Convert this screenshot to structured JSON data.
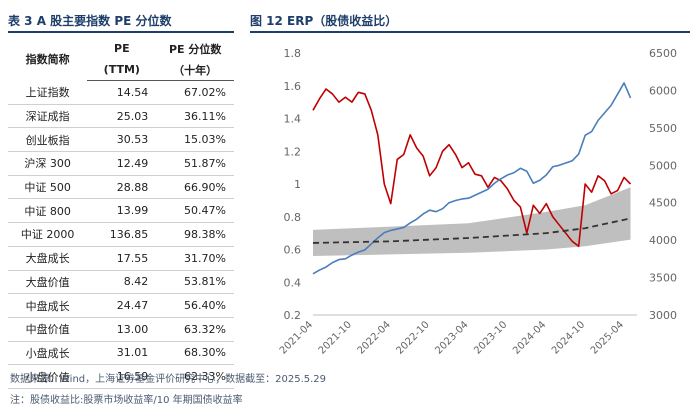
{
  "table": {
    "title": "表 3 A 股主要指数 PE 分位数",
    "headers": [
      {
        "line1": "指数简称",
        "line2": ""
      },
      {
        "line1": "PE",
        "line2": "(TTM)"
      },
      {
        "line1": "PE 分位数",
        "line2": "（十年）"
      }
    ],
    "rows": [
      {
        "name": "上证指数",
        "pe": "14.54",
        "pct": "67.02%"
      },
      {
        "name": "深证成指",
        "pe": "25.03",
        "pct": "36.11%"
      },
      {
        "name": "创业板指",
        "pe": "30.53",
        "pct": "15.03%"
      },
      {
        "name": "沪深 300",
        "pe": "12.49",
        "pct": "51.87%"
      },
      {
        "name": "中证 500",
        "pe": "28.88",
        "pct": "66.90%"
      },
      {
        "name": "中证 800",
        "pe": "13.99",
        "pct": "50.47%"
      },
      {
        "name": "中证 2000",
        "pe": "136.85",
        "pct": "98.38%"
      },
      {
        "name": "大盘成长",
        "pe": "17.55",
        "pct": "31.70%"
      },
      {
        "name": "大盘价值",
        "pe": "8.42",
        "pct": "53.81%"
      },
      {
        "name": "中盘成长",
        "pe": "24.47",
        "pct": "56.40%"
      },
      {
        "name": "中盘价值",
        "pe": "13.00",
        "pct": "63.32%"
      },
      {
        "name": "小盘成长",
        "pe": "31.01",
        "pct": "68.30%"
      },
      {
        "name": "小盘价值",
        "pe": "16.59",
        "pct": "62.33%"
      }
    ]
  },
  "chart_title": "图 12 ERP（股债收益比）",
  "footer": {
    "source": "数据来源：Wind，上海证券基金评价研究中心；数据截至：2025.5.29",
    "note": "注：股债收益比:股票市场收益率/10 年期国债收益率"
  },
  "colors": {
    "title": "#1f3f6b",
    "red": "#c00000",
    "blue": "#4a7ebb",
    "band": "#bfbfbf",
    "dash": "#333333"
  },
  "chart_data": {
    "type": "line",
    "title": "",
    "x_ticks": [
      "2021-04",
      "2021-10",
      "2022-04",
      "2022-10",
      "2023-04",
      "2023-10",
      "2024-04",
      "2024-10",
      "2025-04"
    ],
    "x_range": [
      "2021-04",
      "2025-06"
    ],
    "y_left": {
      "range": [
        0.2,
        1.8
      ],
      "ticks": [
        "0.2",
        "0.4",
        "0.6",
        "0.8",
        "1",
        "1.2",
        "1.4",
        "1.6",
        "1.8"
      ]
    },
    "y_right": {
      "range": [
        3000,
        6500
      ],
      "ticks": [
        "3000",
        "3500",
        "4000",
        "4500",
        "5000",
        "5500",
        "6000",
        "6500"
      ]
    },
    "grid": false,
    "legend": "none",
    "series": [
      {
        "axis": "left",
        "color": "#c00000",
        "style": "solid",
        "x": [
          "2021-04",
          "2021-05",
          "2021-06",
          "2021-07",
          "2021-08",
          "2021-09",
          "2021-10",
          "2021-11",
          "2021-12",
          "2022-01",
          "2022-02",
          "2022-03",
          "2022-04",
          "2022-05",
          "2022-06",
          "2022-07",
          "2022-08",
          "2022-09",
          "2022-10",
          "2022-11",
          "2022-12",
          "2023-01",
          "2023-02",
          "2023-03",
          "2023-04",
          "2023-05",
          "2023-06",
          "2023-07",
          "2023-08",
          "2023-09",
          "2023-10",
          "2023-11",
          "2023-12",
          "2024-01",
          "2024-02",
          "2024-03",
          "2024-04",
          "2024-05",
          "2024-06",
          "2024-07",
          "2024-08",
          "2024-09",
          "2024-10",
          "2024-11",
          "2024-12",
          "2025-01",
          "2025-02",
          "2025-03",
          "2025-04",
          "2025-05"
        ],
        "values": [
          1.45,
          1.52,
          1.58,
          1.55,
          1.5,
          1.53,
          1.5,
          1.56,
          1.55,
          1.45,
          1.3,
          1.0,
          0.88,
          1.15,
          1.18,
          1.3,
          1.22,
          1.17,
          1.05,
          1.1,
          1.2,
          1.24,
          1.18,
          1.1,
          1.13,
          1.06,
          1.05,
          0.98,
          1.04,
          1.02,
          0.97,
          0.9,
          0.86,
          0.7,
          0.87,
          0.82,
          0.88,
          0.8,
          0.75,
          0.7,
          0.65,
          0.62,
          1.0,
          0.95,
          1.05,
          1.02,
          0.94,
          0.96,
          1.04,
          1.0
        ]
      },
      {
        "axis": "right",
        "color": "#4a7ebb",
        "style": "solid",
        "x": [
          "2021-04",
          "2021-05",
          "2021-06",
          "2021-07",
          "2021-08",
          "2021-09",
          "2021-10",
          "2021-11",
          "2021-12",
          "2022-01",
          "2022-02",
          "2022-03",
          "2022-04",
          "2022-05",
          "2022-06",
          "2022-07",
          "2022-08",
          "2022-09",
          "2022-10",
          "2022-11",
          "2022-12",
          "2023-01",
          "2023-02",
          "2023-03",
          "2023-04",
          "2023-05",
          "2023-06",
          "2023-07",
          "2023-08",
          "2023-09",
          "2023-10",
          "2023-11",
          "2023-12",
          "2024-01",
          "2024-02",
          "2024-03",
          "2024-04",
          "2024-05",
          "2024-06",
          "2024-07",
          "2024-08",
          "2024-09",
          "2024-10",
          "2024-11",
          "2024-12",
          "2025-01",
          "2025-02",
          "2025-03",
          "2025-04",
          "2025-05"
        ],
        "values": [
          3550,
          3600,
          3640,
          3700,
          3740,
          3750,
          3800,
          3840,
          3870,
          3950,
          4030,
          4100,
          4130,
          4150,
          4170,
          4230,
          4280,
          4350,
          4400,
          4380,
          4420,
          4500,
          4530,
          4550,
          4560,
          4600,
          4640,
          4680,
          4760,
          4820,
          4870,
          4900,
          4960,
          4920,
          4760,
          4800,
          4870,
          4980,
          5000,
          5030,
          5060,
          5150,
          5400,
          5450,
          5600,
          5700,
          5800,
          5950,
          6100,
          5900
        ]
      },
      {
        "axis": "left",
        "color": "#333333",
        "style": "dashed",
        "x": [
          "2021-04",
          "2022-04",
          "2023-04",
          "2024-04",
          "2024-10",
          "2025-05"
        ],
        "values": [
          0.64,
          0.65,
          0.67,
          0.7,
          0.73,
          0.79
        ]
      },
      {
        "axis": "left",
        "color": "#bfbfbf",
        "style": "band",
        "x": [
          "2021-04",
          "2022-04",
          "2023-04",
          "2024-04",
          "2024-10",
          "2025-05"
        ],
        "upper": [
          0.72,
          0.74,
          0.76,
          0.83,
          0.87,
          0.98
        ],
        "lower": [
          0.56,
          0.57,
          0.58,
          0.6,
          0.62,
          0.66
        ]
      }
    ]
  }
}
